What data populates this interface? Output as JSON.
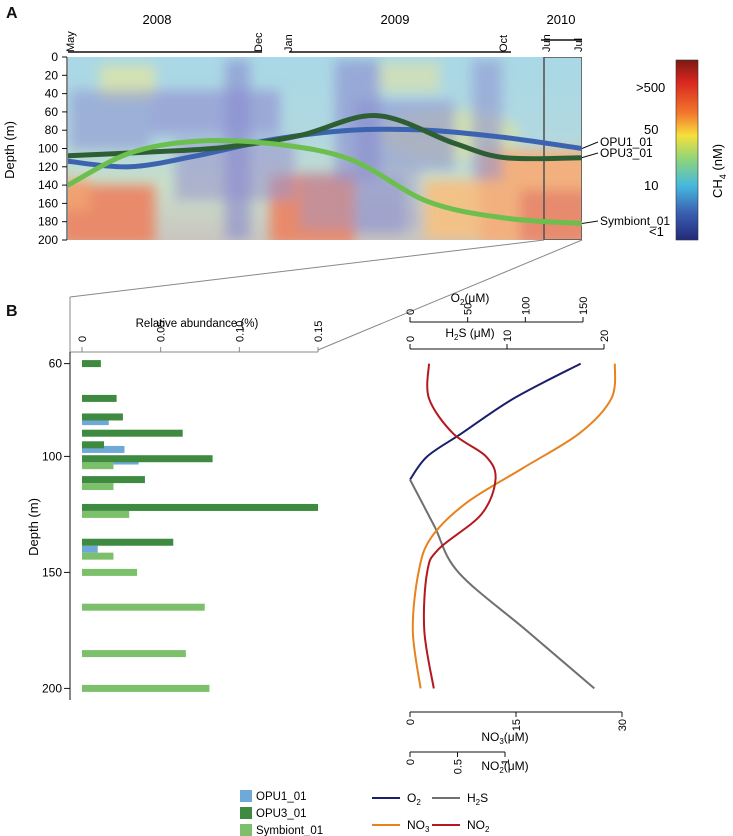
{
  "panels": {
    "a": "A",
    "b": "B"
  },
  "colors": {
    "opu1": "#3c63b0",
    "opu3": "#2e5e33",
    "symbiont": "#6cbf4e",
    "bar_opu1": "#6fa9d8",
    "bar_opu3": "#3e8a40",
    "bar_symbiont": "#7cc06b",
    "o2": "#1a1f6b",
    "no3": "#e6821f",
    "h2s": "#707070",
    "no2": "#b3191e"
  },
  "chart_data": [
    {
      "type": "heatmap",
      "panel": "A",
      "title": "",
      "years": [
        "2008",
        "2009",
        "2010"
      ],
      "month_marks": [
        "May",
        "Dec",
        "Jan",
        "Oct",
        "Jun",
        "Jul"
      ],
      "ylabel": "Depth (m)",
      "yticks": [
        0,
        20,
        40,
        60,
        80,
        100,
        120,
        140,
        160,
        180,
        200
      ],
      "ylim": [
        0,
        200
      ],
      "xlim": [
        0,
        100
      ],
      "colorbar": {
        "label": "CH4 (nM)",
        "label_main": "CH",
        "label_sub": "4",
        "label_unit": " (nM)",
        "ticks": [
          ">500",
          "50",
          "10",
          "<1"
        ]
      },
      "series": [
        {
          "name": "OPU1_01",
          "x": [
            0,
            12,
            25,
            40,
            55,
            70,
            85,
            100
          ],
          "depth": [
            114,
            120,
            108,
            90,
            80,
            80,
            88,
            100
          ]
        },
        {
          "name": "OPU3_01",
          "x": [
            0,
            15,
            30,
            45,
            60,
            75,
            85,
            100
          ],
          "depth": [
            108,
            104,
            99,
            86,
            64,
            94,
            110,
            110
          ]
        },
        {
          "name": "Symbiont_01",
          "x": [
            0,
            12,
            25,
            40,
            55,
            70,
            85,
            100
          ],
          "depth": [
            140,
            105,
            92,
            95,
            112,
            158,
            176,
            182
          ]
        }
      ],
      "labels": [
        "OPU1_01",
        "OPU3_01",
        "Symbiont_01"
      ]
    },
    {
      "type": "bar",
      "panel": "B",
      "title": "Relative abundance  (%)",
      "xlabel": "Relative abundance  (%)",
      "ylabel": "Depth (m)",
      "xticks": [
        "0",
        "0.05",
        "0.10",
        "0.15"
      ],
      "xlim": [
        0,
        0.15
      ],
      "yticks": [
        60,
        100,
        150,
        200
      ],
      "ylim": [
        55,
        205
      ],
      "series": [
        {
          "name": "OPU1_01",
          "bars": [
            {
              "depth": 85,
              "value": 0.017
            },
            {
              "depth": 97,
              "value": 0.027
            },
            {
              "depth": 102,
              "value": 0.036
            },
            {
              "depth": 140,
              "value": 0.01
            }
          ]
        },
        {
          "name": "OPU3_01",
          "bars": [
            {
              "depth": 60,
              "value": 0.012
            },
            {
              "depth": 75,
              "value": 0.022
            },
            {
              "depth": 83,
              "value": 0.026
            },
            {
              "depth": 90,
              "value": 0.064
            },
            {
              "depth": 95,
              "value": 0.014
            },
            {
              "depth": 101,
              "value": 0.083
            },
            {
              "depth": 110,
              "value": 0.04
            },
            {
              "depth": 122,
              "value": 0.15
            },
            {
              "depth": 137,
              "value": 0.058
            }
          ]
        },
        {
          "name": "Symbiont_01",
          "bars": [
            {
              "depth": 104,
              "value": 0.02
            },
            {
              "depth": 113,
              "value": 0.02
            },
            {
              "depth": 125,
              "value": 0.03
            },
            {
              "depth": 143,
              "value": 0.02
            },
            {
              "depth": 150,
              "value": 0.035
            },
            {
              "depth": 165,
              "value": 0.078
            },
            {
              "depth": 185,
              "value": 0.066
            },
            {
              "depth": 200,
              "value": 0.081
            }
          ]
        }
      ]
    },
    {
      "type": "line",
      "panel": "B",
      "title": "",
      "ylim": [
        55,
        205
      ],
      "axes": [
        {
          "key": "o2",
          "main": "O",
          "sub": "2",
          "unit": "(μM)",
          "ticks": [
            0,
            50,
            100,
            150
          ],
          "range": [
            0,
            150
          ]
        },
        {
          "key": "h2s",
          "main": "H",
          "sub": "2",
          "tail": "S",
          "unit": " (μM)",
          "ticks": [
            0,
            10,
            20
          ],
          "range": [
            0,
            20
          ]
        },
        {
          "key": "no3",
          "main": "NO",
          "sub": "3",
          "unit": "(μM)",
          "ticks": [
            0,
            15,
            30
          ],
          "range": [
            0,
            30
          ]
        },
        {
          "key": "no2",
          "main": "NO",
          "sub": "2",
          "unit": "(μM)",
          "ticks": [
            0,
            0.5,
            1
          ],
          "range": [
            0,
            1
          ]
        }
      ],
      "series": [
        {
          "name": "O2",
          "key": "o2",
          "axis": "o2",
          "legend_main": "O",
          "legend_sub": "2",
          "legend_tail": "",
          "depth": [
            60,
            75,
            90,
            100,
            110
          ],
          "values": [
            148,
            90,
            45,
            15,
            0
          ]
        },
        {
          "name": "H2S",
          "key": "h2s",
          "axis": "h2s",
          "legend_main": "H",
          "legend_sub": "2",
          "legend_tail": "S",
          "depth": [
            110,
            130,
            150,
            175,
            200
          ],
          "values": [
            0,
            2.5,
            5,
            12,
            19
          ]
        },
        {
          "name": "NO3",
          "key": "no3",
          "axis": "no3",
          "legend_main": "NO",
          "legend_sub": "3",
          "legend_tail": "",
          "depth": [
            60,
            75,
            90,
            105,
            120,
            135,
            150,
            175,
            200
          ],
          "values": [
            29,
            28.5,
            24,
            16,
            8,
            3,
            1.2,
            0.4,
            1.5
          ]
        },
        {
          "name": "NO2",
          "key": "no2",
          "axis": "no2",
          "legend_main": "NO",
          "legend_sub": "2",
          "legend_tail": "",
          "depth": [
            60,
            75,
            90,
            100,
            110,
            125,
            140,
            150,
            175,
            200
          ],
          "values": [
            0.2,
            0.2,
            0.45,
            0.8,
            0.9,
            0.75,
            0.3,
            0.18,
            0.15,
            0.25
          ]
        }
      ]
    }
  ]
}
